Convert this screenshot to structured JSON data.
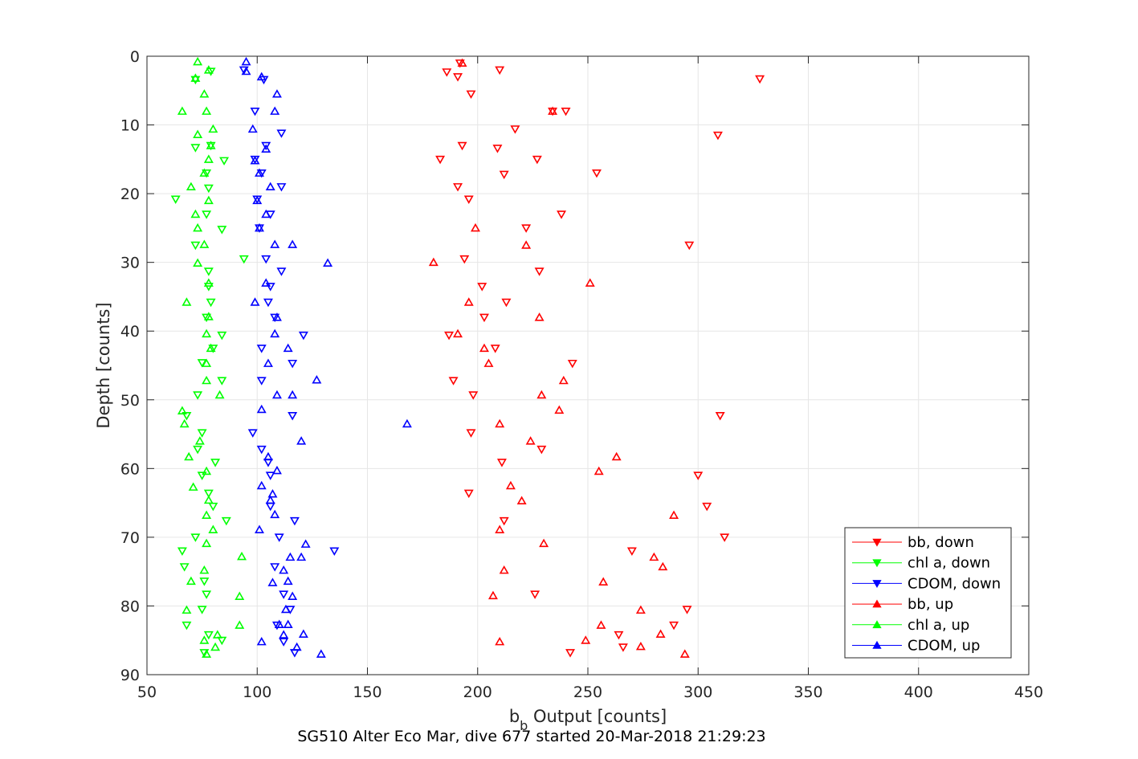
{
  "chart_data": {
    "type": "scatter",
    "caption": "SG510 Alter Eco Mar, dive 677 started 20-Mar-2018 21:29:23",
    "xlabel": {
      "main": "b",
      "sub": "b",
      "rest": " Output [counts]"
    },
    "ylabel": "Depth [counts]",
    "xlim": [
      50,
      450
    ],
    "ylim": [
      0,
      90
    ],
    "y_reversed": true,
    "grid": true,
    "legend_position": "bottom-right",
    "xticks": [
      "50",
      "100",
      "150",
      "200",
      "250",
      "300",
      "350",
      "400",
      "450"
    ],
    "yticks": [
      "0",
      "10",
      "20",
      "30",
      "40",
      "50",
      "60",
      "70",
      "80",
      "90"
    ],
    "series": [
      {
        "name": "bb, down",
        "color": "#ff0000",
        "marker": "triangle-down",
        "points": [
          [
            192,
            1
          ],
          [
            210,
            2
          ],
          [
            186,
            2.3
          ],
          [
            191,
            3
          ],
          [
            328,
            3.3
          ],
          [
            197,
            5.5
          ],
          [
            234,
            8
          ],
          [
            240,
            8
          ],
          [
            217,
            10.6
          ],
          [
            309,
            11.5
          ],
          [
            193,
            13
          ],
          [
            209,
            13.4
          ],
          [
            183,
            15
          ],
          [
            227,
            15
          ],
          [
            212,
            17.2
          ],
          [
            254,
            17
          ],
          [
            191,
            19
          ],
          [
            196,
            20.8
          ],
          [
            238,
            23
          ],
          [
            222,
            25
          ],
          [
            296,
            27.5
          ],
          [
            194,
            29.5
          ],
          [
            228,
            31.3
          ],
          [
            202,
            33.5
          ],
          [
            213,
            35.8
          ],
          [
            203,
            38
          ],
          [
            187,
            40.6
          ],
          [
            208,
            42.5
          ],
          [
            243,
            44.7
          ],
          [
            189,
            47.2
          ],
          [
            198,
            49.3
          ],
          [
            310,
            52.3
          ],
          [
            197,
            54.8
          ],
          [
            229,
            57.2
          ],
          [
            211,
            59.1
          ],
          [
            300,
            61
          ],
          [
            196,
            63.6
          ],
          [
            304,
            65.5
          ],
          [
            212,
            67.6
          ],
          [
            312,
            70
          ],
          [
            270,
            72
          ],
          [
            226,
            78.3
          ],
          [
            295,
            80.5
          ],
          [
            289,
            82.8
          ],
          [
            264,
            84.2
          ],
          [
            266,
            86
          ],
          [
            242,
            86.8
          ]
        ]
      },
      {
        "name": "chl a, down",
        "color": "#00ff00",
        "marker": "triangle-down",
        "points": [
          [
            79,
            2.2
          ],
          [
            72,
            3.4
          ],
          [
            72,
            13.3
          ],
          [
            79,
            13
          ],
          [
            85,
            15.2
          ],
          [
            77,
            17
          ],
          [
            78,
            19.2
          ],
          [
            63,
            20.8
          ],
          [
            77,
            23
          ],
          [
            84,
            25.2
          ],
          [
            72,
            27.5
          ],
          [
            94,
            29.5
          ],
          [
            78,
            31.3
          ],
          [
            78,
            33.5
          ],
          [
            79,
            35.8
          ],
          [
            77,
            38
          ],
          [
            84,
            40.6
          ],
          [
            80,
            42.5
          ],
          [
            75,
            44.6
          ],
          [
            84,
            47.2
          ],
          [
            73,
            49.3
          ],
          [
            68,
            52.3
          ],
          [
            75,
            54.8
          ],
          [
            73,
            57.2
          ],
          [
            81,
            59.1
          ],
          [
            75,
            61
          ],
          [
            78,
            63.6
          ],
          [
            80,
            65.5
          ],
          [
            86,
            67.6
          ],
          [
            72,
            70
          ],
          [
            66,
            72
          ],
          [
            67,
            74.3
          ],
          [
            76,
            76.4
          ],
          [
            77,
            78.3
          ],
          [
            75,
            80.5
          ],
          [
            68,
            82.8
          ],
          [
            78,
            84.2
          ],
          [
            84,
            85
          ],
          [
            76,
            86.8
          ]
        ]
      },
      {
        "name": "CDOM, down",
        "color": "#0000ff",
        "marker": "triangle-down",
        "points": [
          [
            94,
            2
          ],
          [
            103,
            3.4
          ],
          [
            99,
            8
          ],
          [
            111,
            11.2
          ],
          [
            104,
            13
          ],
          [
            99,
            15
          ],
          [
            102,
            17
          ],
          [
            111,
            19
          ],
          [
            100,
            20.8
          ],
          [
            106,
            23
          ],
          [
            101,
            25
          ],
          [
            104,
            29.5
          ],
          [
            111,
            31.3
          ],
          [
            106,
            33.5
          ],
          [
            105,
            35.8
          ],
          [
            108,
            38
          ],
          [
            121,
            40.6
          ],
          [
            102,
            42.5
          ],
          [
            116,
            44.7
          ],
          [
            102,
            47.2
          ],
          [
            116,
            52.3
          ],
          [
            98,
            54.8
          ],
          [
            102,
            57.2
          ],
          [
            105,
            59.1
          ],
          [
            106,
            61
          ],
          [
            106,
            65.5
          ],
          [
            117,
            67.6
          ],
          [
            110,
            70
          ],
          [
            135,
            72
          ],
          [
            108,
            74.3
          ],
          [
            112,
            78.3
          ],
          [
            115,
            80.5
          ],
          [
            109,
            82.8
          ],
          [
            112,
            85.2
          ],
          [
            117,
            86.8
          ]
        ]
      },
      {
        "name": "bb, up",
        "color": "#ff0000",
        "marker": "triangle-up",
        "points": [
          [
            193,
            1
          ],
          [
            234,
            8
          ],
          [
            199,
            25
          ],
          [
            222,
            27.5
          ],
          [
            180,
            30
          ],
          [
            251,
            33
          ],
          [
            196,
            35.8
          ],
          [
            228,
            38
          ],
          [
            191,
            40.4
          ],
          [
            203,
            42.5
          ],
          [
            205,
            44.7
          ],
          [
            239,
            47.2
          ],
          [
            229,
            49.3
          ],
          [
            237,
            51.5
          ],
          [
            210,
            53.5
          ],
          [
            224,
            56
          ],
          [
            263,
            58.3
          ],
          [
            255,
            60.4
          ],
          [
            215,
            62.5
          ],
          [
            220,
            64.7
          ],
          [
            289,
            66.8
          ],
          [
            210,
            68.9
          ],
          [
            230,
            70.9
          ],
          [
            280,
            72.9
          ],
          [
            284,
            74.3
          ],
          [
            212,
            74.8
          ],
          [
            257,
            76.5
          ],
          [
            207,
            78.5
          ],
          [
            274,
            80.6
          ],
          [
            256,
            82.8
          ],
          [
            283,
            84.1
          ],
          [
            249,
            85
          ],
          [
            210,
            85.2
          ],
          [
            274,
            85.9
          ],
          [
            294,
            87
          ]
        ]
      },
      {
        "name": "chl a, up",
        "color": "#00ff00",
        "marker": "triangle-up",
        "points": [
          [
            73,
            0.8
          ],
          [
            78,
            2
          ],
          [
            72,
            3.2
          ],
          [
            76,
            5.5
          ],
          [
            66,
            8
          ],
          [
            77,
            8
          ],
          [
            80,
            10.6
          ],
          [
            73,
            11.4
          ],
          [
            79,
            13
          ],
          [
            78,
            15
          ],
          [
            76,
            17
          ],
          [
            70,
            19
          ],
          [
            78,
            21
          ],
          [
            72,
            23
          ],
          [
            73,
            25
          ],
          [
            76,
            27.4
          ],
          [
            73,
            30.1
          ],
          [
            78,
            33
          ],
          [
            68,
            35.8
          ],
          [
            78,
            37.9
          ],
          [
            77,
            40.4
          ],
          [
            79,
            42.5
          ],
          [
            77,
            44.7
          ],
          [
            77,
            47.2
          ],
          [
            83,
            49.3
          ],
          [
            66,
            51.6
          ],
          [
            67,
            53.5
          ],
          [
            74,
            56
          ],
          [
            69,
            58.3
          ],
          [
            77,
            60.4
          ],
          [
            71,
            62.7
          ],
          [
            78,
            64.6
          ],
          [
            77,
            66.8
          ],
          [
            80,
            68.9
          ],
          [
            77,
            70.9
          ],
          [
            93,
            72.8
          ],
          [
            76,
            74.8
          ],
          [
            70,
            76.4
          ],
          [
            92,
            78.6
          ],
          [
            68,
            80.6
          ],
          [
            92,
            82.8
          ],
          [
            82,
            84.2
          ],
          [
            76,
            85
          ],
          [
            81,
            86
          ],
          [
            77,
            87
          ]
        ]
      },
      {
        "name": "CDOM, up",
        "color": "#0000ff",
        "marker": "triangle-up",
        "points": [
          [
            95,
            0.8
          ],
          [
            95,
            2.2
          ],
          [
            102,
            3
          ],
          [
            109,
            5.5
          ],
          [
            108,
            8
          ],
          [
            98,
            10.6
          ],
          [
            104,
            13.5
          ],
          [
            99,
            15.2
          ],
          [
            101,
            17
          ],
          [
            106,
            19
          ],
          [
            100,
            21
          ],
          [
            104,
            23
          ],
          [
            101,
            25
          ],
          [
            108,
            27.4
          ],
          [
            116,
            27.4
          ],
          [
            132,
            30.1
          ],
          [
            104,
            33
          ],
          [
            99,
            35.8
          ],
          [
            109,
            38
          ],
          [
            108,
            40.4
          ],
          [
            114,
            42.5
          ],
          [
            105,
            44.7
          ],
          [
            127,
            47.1
          ],
          [
            109,
            49.3
          ],
          [
            116,
            49.3
          ],
          [
            102,
            51.4
          ],
          [
            168,
            53.5
          ],
          [
            120,
            56
          ],
          [
            105,
            58.3
          ],
          [
            109,
            60.3
          ],
          [
            102,
            62.5
          ],
          [
            107,
            63.7
          ],
          [
            106,
            64.6
          ],
          [
            108,
            66.7
          ],
          [
            101,
            68.9
          ],
          [
            122,
            71
          ],
          [
            115,
            72.9
          ],
          [
            120,
            72.9
          ],
          [
            112,
            74.8
          ],
          [
            114,
            76.4
          ],
          [
            107,
            76.6
          ],
          [
            116,
            78.6
          ],
          [
            113,
            80.5
          ],
          [
            110,
            82.7
          ],
          [
            114,
            82.7
          ],
          [
            112,
            84.2
          ],
          [
            102,
            85.2
          ],
          [
            121,
            84.1
          ],
          [
            118,
            86
          ],
          [
            129,
            87
          ]
        ]
      }
    ]
  }
}
